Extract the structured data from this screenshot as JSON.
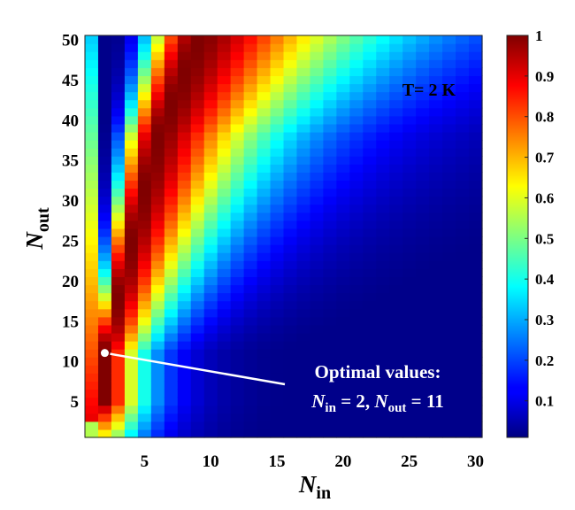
{
  "chart_data": {
    "type": "heatmap",
    "title": "",
    "xlabel": {
      "main": "N",
      "sub": "in"
    },
    "ylabel": {
      "main": "N",
      "sub": "out"
    },
    "x_range": [
      1,
      30
    ],
    "y_range": [
      1,
      50
    ],
    "x_ticks": [
      "5",
      "10",
      "15",
      "20",
      "25",
      "30"
    ],
    "y_ticks": [
      "5",
      "10",
      "15",
      "20",
      "25",
      "30",
      "35",
      "40",
      "45",
      "50"
    ],
    "colorbar": {
      "range": [
        0.01,
        1
      ],
      "ticks": [
        "0.1",
        "0.2",
        "0.3",
        "0.4",
        "0.5",
        "0.6",
        "0.7",
        "0.8",
        "0.9",
        "1"
      ]
    },
    "temperature_label": "T= 2 K",
    "annotation": {
      "line1": "Optimal values:",
      "nin_main": "N",
      "nin_sub": "in",
      "nin_value": " = 2, ",
      "nout_main": "N",
      "nout_sub": "out",
      "nout_value": " = 11",
      "point": {
        "x": 2,
        "y": 11
      }
    },
    "value_model": "Each cell value is read from the colormap; ridge of maximum (~1.0) runs from (2,11) toward (9,50), falling to ~0.01 at large N_in / small N_out.",
    "ridge_points": [
      {
        "x": 2,
        "y": 11
      },
      {
        "x": 4,
        "y": 25
      },
      {
        "x": 6,
        "y": 38
      },
      {
        "x": 9,
        "y": 50
      }
    ]
  }
}
